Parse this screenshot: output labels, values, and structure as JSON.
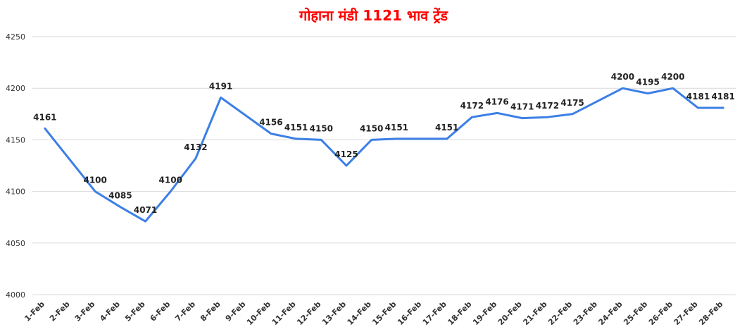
{
  "chart_data": {
    "type": "line",
    "title": "गोहाना मंडी 1121 भाव ट्रेंड",
    "xlabel": "",
    "ylabel": "",
    "ylim": [
      4000,
      4250
    ],
    "yticks": [
      4000,
      4050,
      4100,
      4150,
      4200,
      4250
    ],
    "grid": true,
    "line_color": "#3c7fe6",
    "categories": [
      "1-Feb",
      "2-Feb",
      "3-Feb",
      "4-Feb",
      "5-Feb",
      "6-Feb",
      "7-Feb",
      "8-Feb",
      "9-Feb",
      "10-Feb",
      "11-Feb",
      "12-Feb",
      "13-Feb",
      "14-Feb",
      "15-Feb",
      "16-Feb",
      "17-Feb",
      "18-Feb",
      "19-Feb",
      "20-Feb",
      "21-Feb",
      "22-Feb",
      "23-Feb",
      "24-Feb",
      "25-Feb",
      "26-Feb",
      "27-Feb",
      "28-Feb"
    ],
    "points": [
      {
        "x": "1-Feb",
        "y": 4161,
        "label": "4161"
      },
      {
        "x": "3-Feb",
        "y": 4100,
        "label": "4100"
      },
      {
        "x": "4-Feb",
        "y": 4085,
        "label": "4085"
      },
      {
        "x": "5-Feb",
        "y": 4071,
        "label": "4071"
      },
      {
        "x": "6-Feb",
        "y": 4100,
        "label": "4100"
      },
      {
        "x": "7-Feb",
        "y": 4132,
        "label": "4132"
      },
      {
        "x": "8-Feb",
        "y": 4191,
        "label": "4191"
      },
      {
        "x": "10-Feb",
        "y": 4156,
        "label": "4156"
      },
      {
        "x": "11-Feb",
        "y": 4151,
        "label": "4151"
      },
      {
        "x": "12-Feb",
        "y": 4150,
        "label": "4150"
      },
      {
        "x": "13-Feb",
        "y": 4125,
        "label": "4125"
      },
      {
        "x": "14-Feb",
        "y": 4150,
        "label": "4150"
      },
      {
        "x": "15-Feb",
        "y": 4151,
        "label": "4151"
      },
      {
        "x": "17-Feb",
        "y": 4151,
        "label": "4151"
      },
      {
        "x": "18-Feb",
        "y": 4172,
        "label": "4172"
      },
      {
        "x": "19-Feb",
        "y": 4176,
        "label": "4176"
      },
      {
        "x": "20-Feb",
        "y": 4171,
        "label": "4171"
      },
      {
        "x": "21-Feb",
        "y": 4172,
        "label": "4172"
      },
      {
        "x": "22-Feb",
        "y": 4175,
        "label": "4175"
      },
      {
        "x": "24-Feb",
        "y": 4200,
        "label": "4200"
      },
      {
        "x": "25-Feb",
        "y": 4195,
        "label": "4195"
      },
      {
        "x": "26-Feb",
        "y": 4200,
        "label": "4200"
      },
      {
        "x": "27-Feb",
        "y": 4181,
        "label": "4181"
      },
      {
        "x": "28-Feb",
        "y": 4181,
        "label": "4181"
      }
    ]
  }
}
